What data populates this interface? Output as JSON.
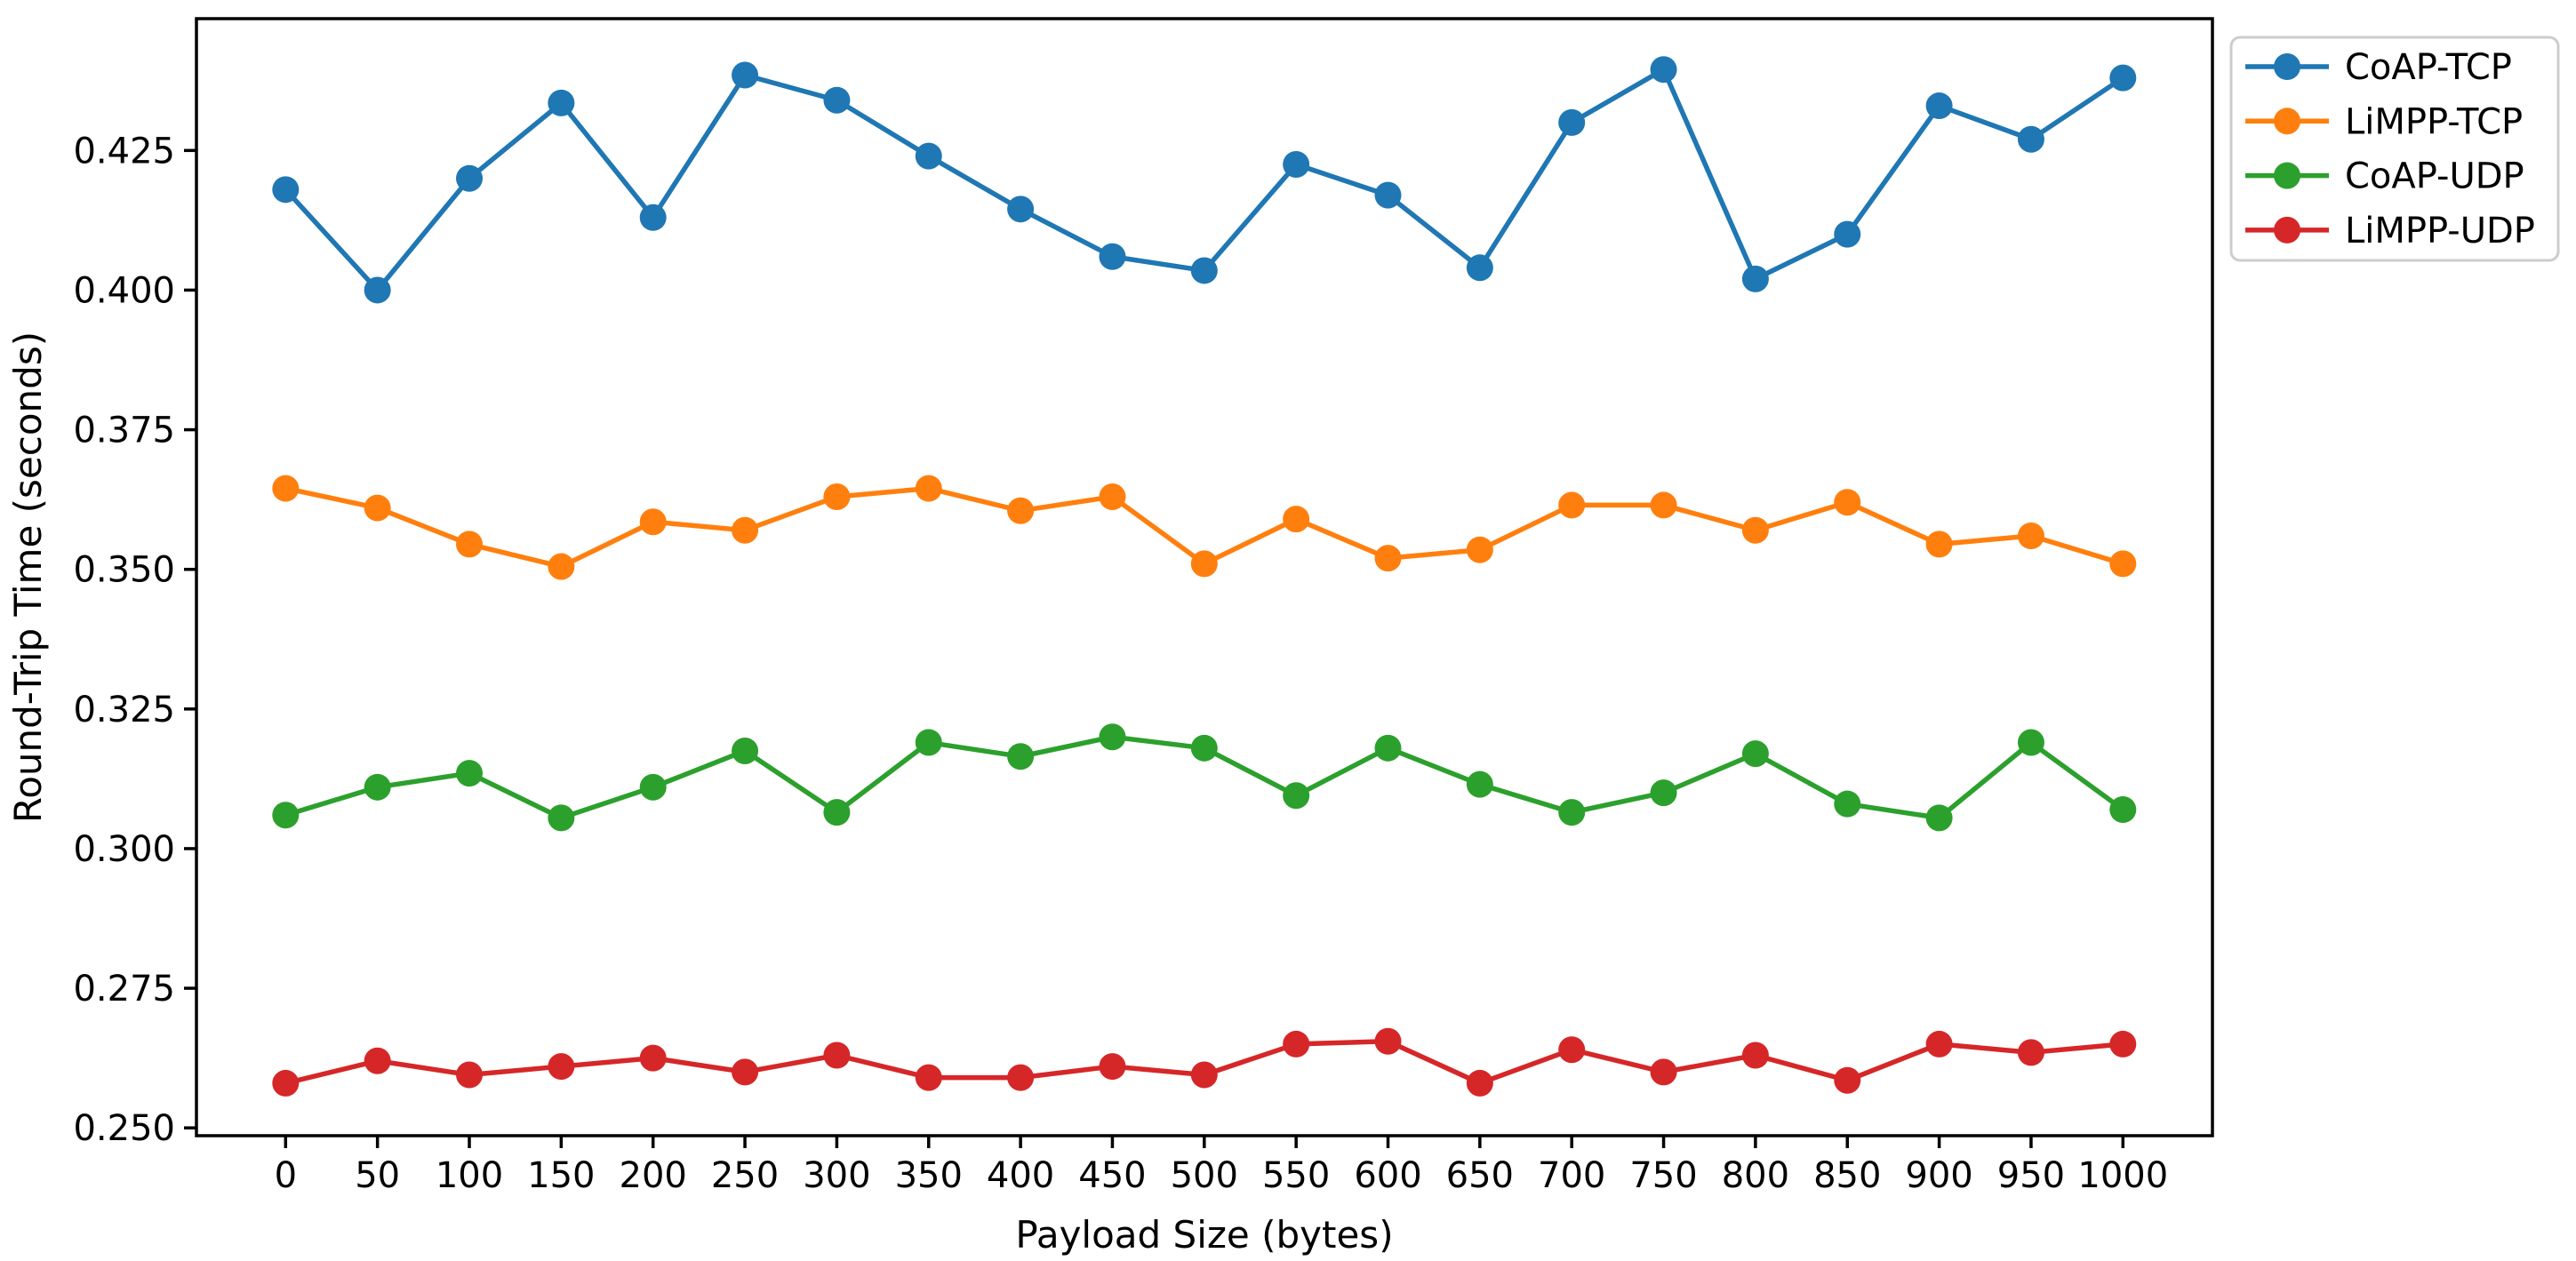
{
  "figure": {
    "background": "#ffffff"
  },
  "chart_data": {
    "type": "line",
    "title": "",
    "xlabel": "Payload Size (bytes)",
    "ylabel": "Round-Trip Time (seconds)",
    "x": [
      0,
      50,
      100,
      150,
      200,
      250,
      300,
      350,
      400,
      450,
      500,
      550,
      600,
      650,
      700,
      750,
      800,
      850,
      900,
      950,
      1000
    ],
    "xticks": [
      0,
      50,
      100,
      150,
      200,
      250,
      300,
      350,
      400,
      450,
      500,
      550,
      600,
      650,
      700,
      750,
      800,
      850,
      900,
      950,
      1000
    ],
    "yticks": [
      0.25,
      0.275,
      0.3,
      0.325,
      0.35,
      0.375,
      0.4,
      0.425
    ],
    "ytick_format_decimals": 3,
    "ylim": [
      0.2486,
      0.4486
    ],
    "xlim_px_margin": "x data 0..1000 mapped with ~4.5% margins",
    "grid": false,
    "legend_position": "upper right, outside axes",
    "series": [
      {
        "name": "CoAP-TCP",
        "color": "#1f77b4",
        "values": [
          0.418,
          0.4,
          0.42,
          0.4335,
          0.413,
          0.4385,
          0.434,
          0.424,
          0.4145,
          0.406,
          0.4035,
          0.4225,
          0.417,
          0.404,
          0.43,
          0.4395,
          0.402,
          0.41,
          0.433,
          0.427,
          0.438
        ]
      },
      {
        "name": "LiMPP-TCP",
        "color": "#ff7f0e",
        "values": [
          0.3645,
          0.361,
          0.3545,
          0.3505,
          0.3585,
          0.357,
          0.363,
          0.3645,
          0.3605,
          0.363,
          0.351,
          0.359,
          0.352,
          0.3535,
          0.3615,
          0.3615,
          0.357,
          0.362,
          0.3545,
          0.356,
          0.351
        ]
      },
      {
        "name": "CoAP-UDP",
        "color": "#2ca02c",
        "values": [
          0.306,
          0.311,
          0.3135,
          0.3055,
          0.311,
          0.3175,
          0.3065,
          0.319,
          0.3165,
          0.32,
          0.318,
          0.3095,
          0.318,
          0.3115,
          0.3065,
          0.31,
          0.317,
          0.308,
          0.3055,
          0.319,
          0.307
        ]
      },
      {
        "name": "LiMPP-UDP",
        "color": "#d62728",
        "values": [
          0.258,
          0.262,
          0.2595,
          0.261,
          0.2625,
          0.26,
          0.263,
          0.259,
          0.259,
          0.261,
          0.2595,
          0.265,
          0.2655,
          0.258,
          0.264,
          0.26,
          0.263,
          0.2585,
          0.265,
          0.2635,
          0.265
        ]
      }
    ],
    "axis_color": "#000000",
    "legend_border_color": "#cccccc",
    "legend_background": "#ffffff"
  }
}
